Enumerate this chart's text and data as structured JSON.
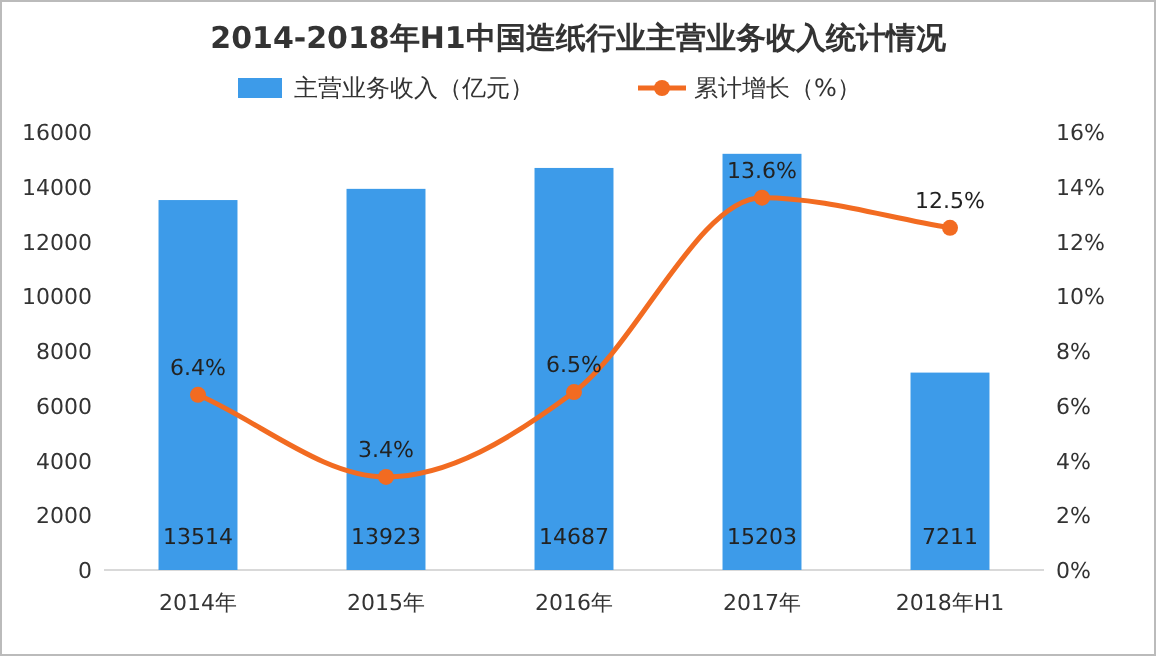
{
  "chart_data": {
    "type": "bar",
    "title": "2014-2018年H1中国造纸行业主营业务收入统计情况",
    "categories": [
      "2014年",
      "2015年",
      "2016年",
      "2017年",
      "2018年H1"
    ],
    "series": [
      {
        "name": "主营业务收入（亿元）",
        "color": "#3d9be9",
        "values": [
          13514,
          13923,
          14687,
          15203,
          7211
        ],
        "value_labels": [
          "13514",
          "13923",
          "14687",
          "15203",
          "7211"
        ]
      },
      {
        "name": "累计增长（%）",
        "type": "line",
        "axis": "y2",
        "color": "#f26b21",
        "marker": "circle",
        "values": [
          6.4,
          3.4,
          6.5,
          13.6,
          12.5
        ],
        "value_labels": [
          "6.4%",
          "3.4%",
          "6.5%",
          "13.6%",
          "12.5%"
        ]
      }
    ],
    "ylim": [
      0,
      16000
    ],
    "yticks": [
      0,
      2000,
      4000,
      6000,
      8000,
      10000,
      12000,
      14000,
      16000
    ],
    "y2lim": [
      0,
      16
    ],
    "y2ticks": [
      {
        "value": 0,
        "label": "0%"
      },
      {
        "value": 2,
        "label": "2%"
      },
      {
        "value": 4,
        "label": "4%"
      },
      {
        "value": 6,
        "label": "6%"
      },
      {
        "value": 8,
        "label": "8%"
      },
      {
        "value": 10,
        "label": "10%"
      },
      {
        "value": 12,
        "label": "12%"
      },
      {
        "value": 14,
        "label": "14%"
      },
      {
        "value": 16,
        "label": "16%"
      }
    ],
    "legend": "top",
    "grid": false
  }
}
